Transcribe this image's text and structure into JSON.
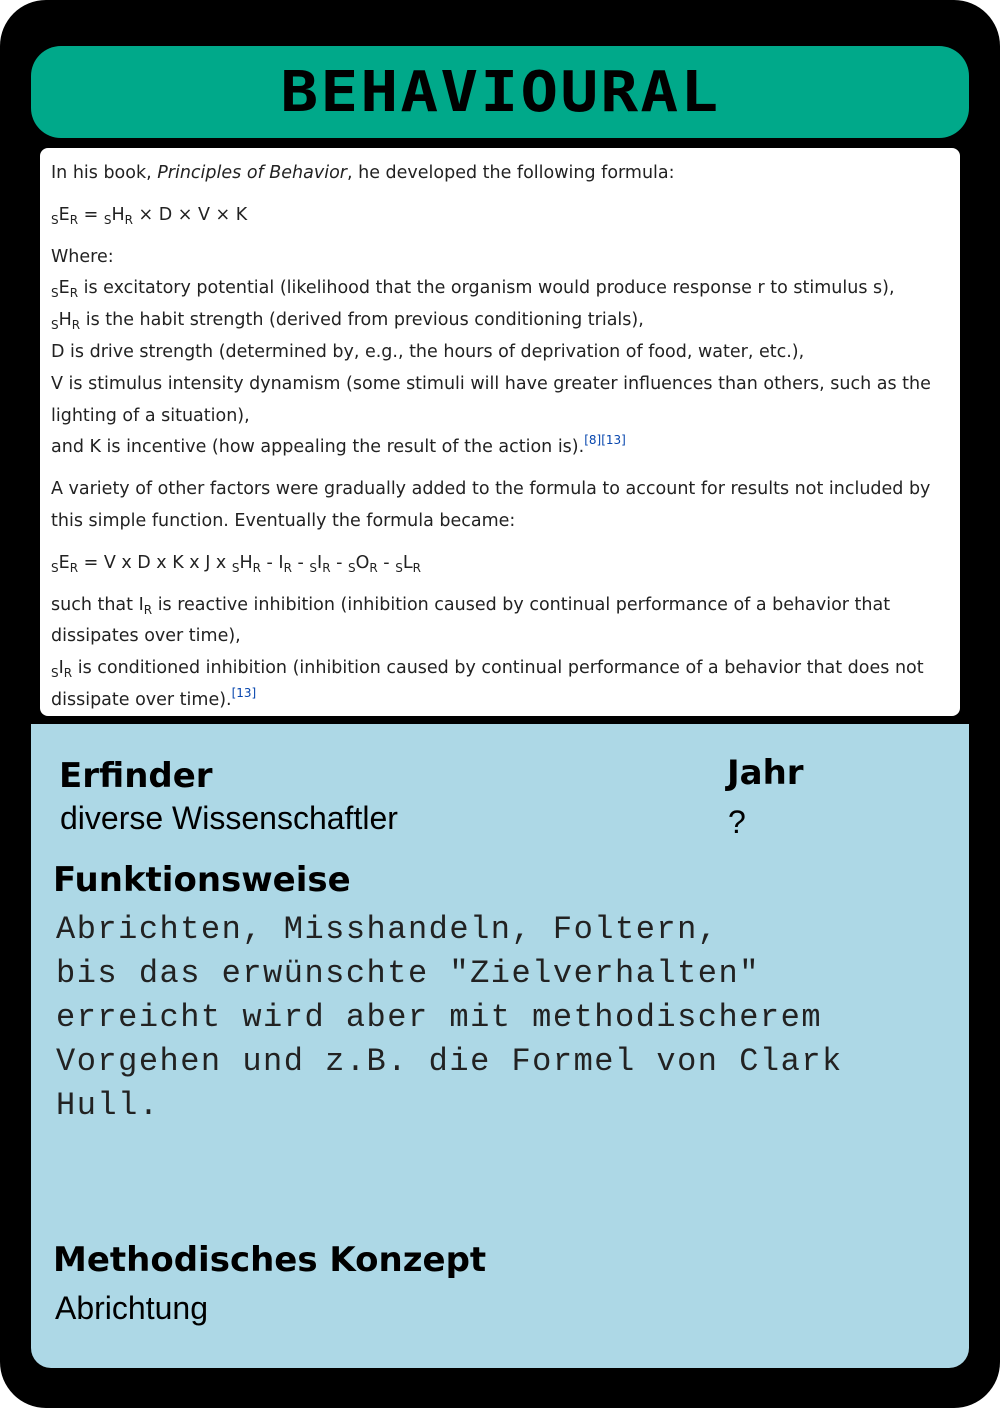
{
  "title": "BEHAVIOURAL",
  "excerpt": {
    "intro_pre": "In his book, ",
    "intro_book": "Principles of Behavior",
    "intro_post": ", he developed the following formula:",
    "formula1": "sER = sHR × D × V × K",
    "where": "Where:",
    "def_ser": "is excitatory potential (likelihood that the organism would produce response r to stimulus s),",
    "def_shr": "is the habit strength (derived from previous conditioning trials),",
    "def_d": "D is drive strength (determined by, e.g., the hours of deprivation of food, water, etc.),",
    "def_v": "V is stimulus intensity dynamism (some stimuli will have greater influences than others, such as the lighting of a situation),",
    "def_k": "and K is incentive (how appealing the result of the action is).",
    "ref_8": "[8]",
    "ref_13": "[13]",
    "variety": "A variety of other factors were gradually added to the formula to account for results not included by this simple function. Eventually the formula became:",
    "formula2": "sER = V x D x K x J x sHR - IR - sIR - sOR - sLR",
    "def_ir_pre": "such that",
    "def_ir": "is reactive inhibition (inhibition caused by continual performance of a behavior that dissipates over time),",
    "def_sir": "is conditioned inhibition (inhibition caused by continual performance of a behavior that does not dissipate over time).",
    "ref_13b": "[13]"
  },
  "info": {
    "inventor_label": "Erfinder",
    "inventor_value": "diverse Wissenschaftler",
    "year_label": "Jahr",
    "year_value": "?",
    "function_label": "Funktionsweise",
    "function_text": "Abrichten, Misshandeln, Foltern,\nbis das erwünschte \"Zielverhalten\"\nerreicht wird aber mit methodischerem\nVorgehen und z.B. die Formel von Clark\nHull.",
    "concept_label": "Methodisches Konzept",
    "concept_value": "Abrichtung"
  },
  "colors": {
    "card_border": "#000000",
    "title_bar": "#00a98a",
    "info_panel": "#add8e6",
    "citation_link": "#0645ad"
  }
}
